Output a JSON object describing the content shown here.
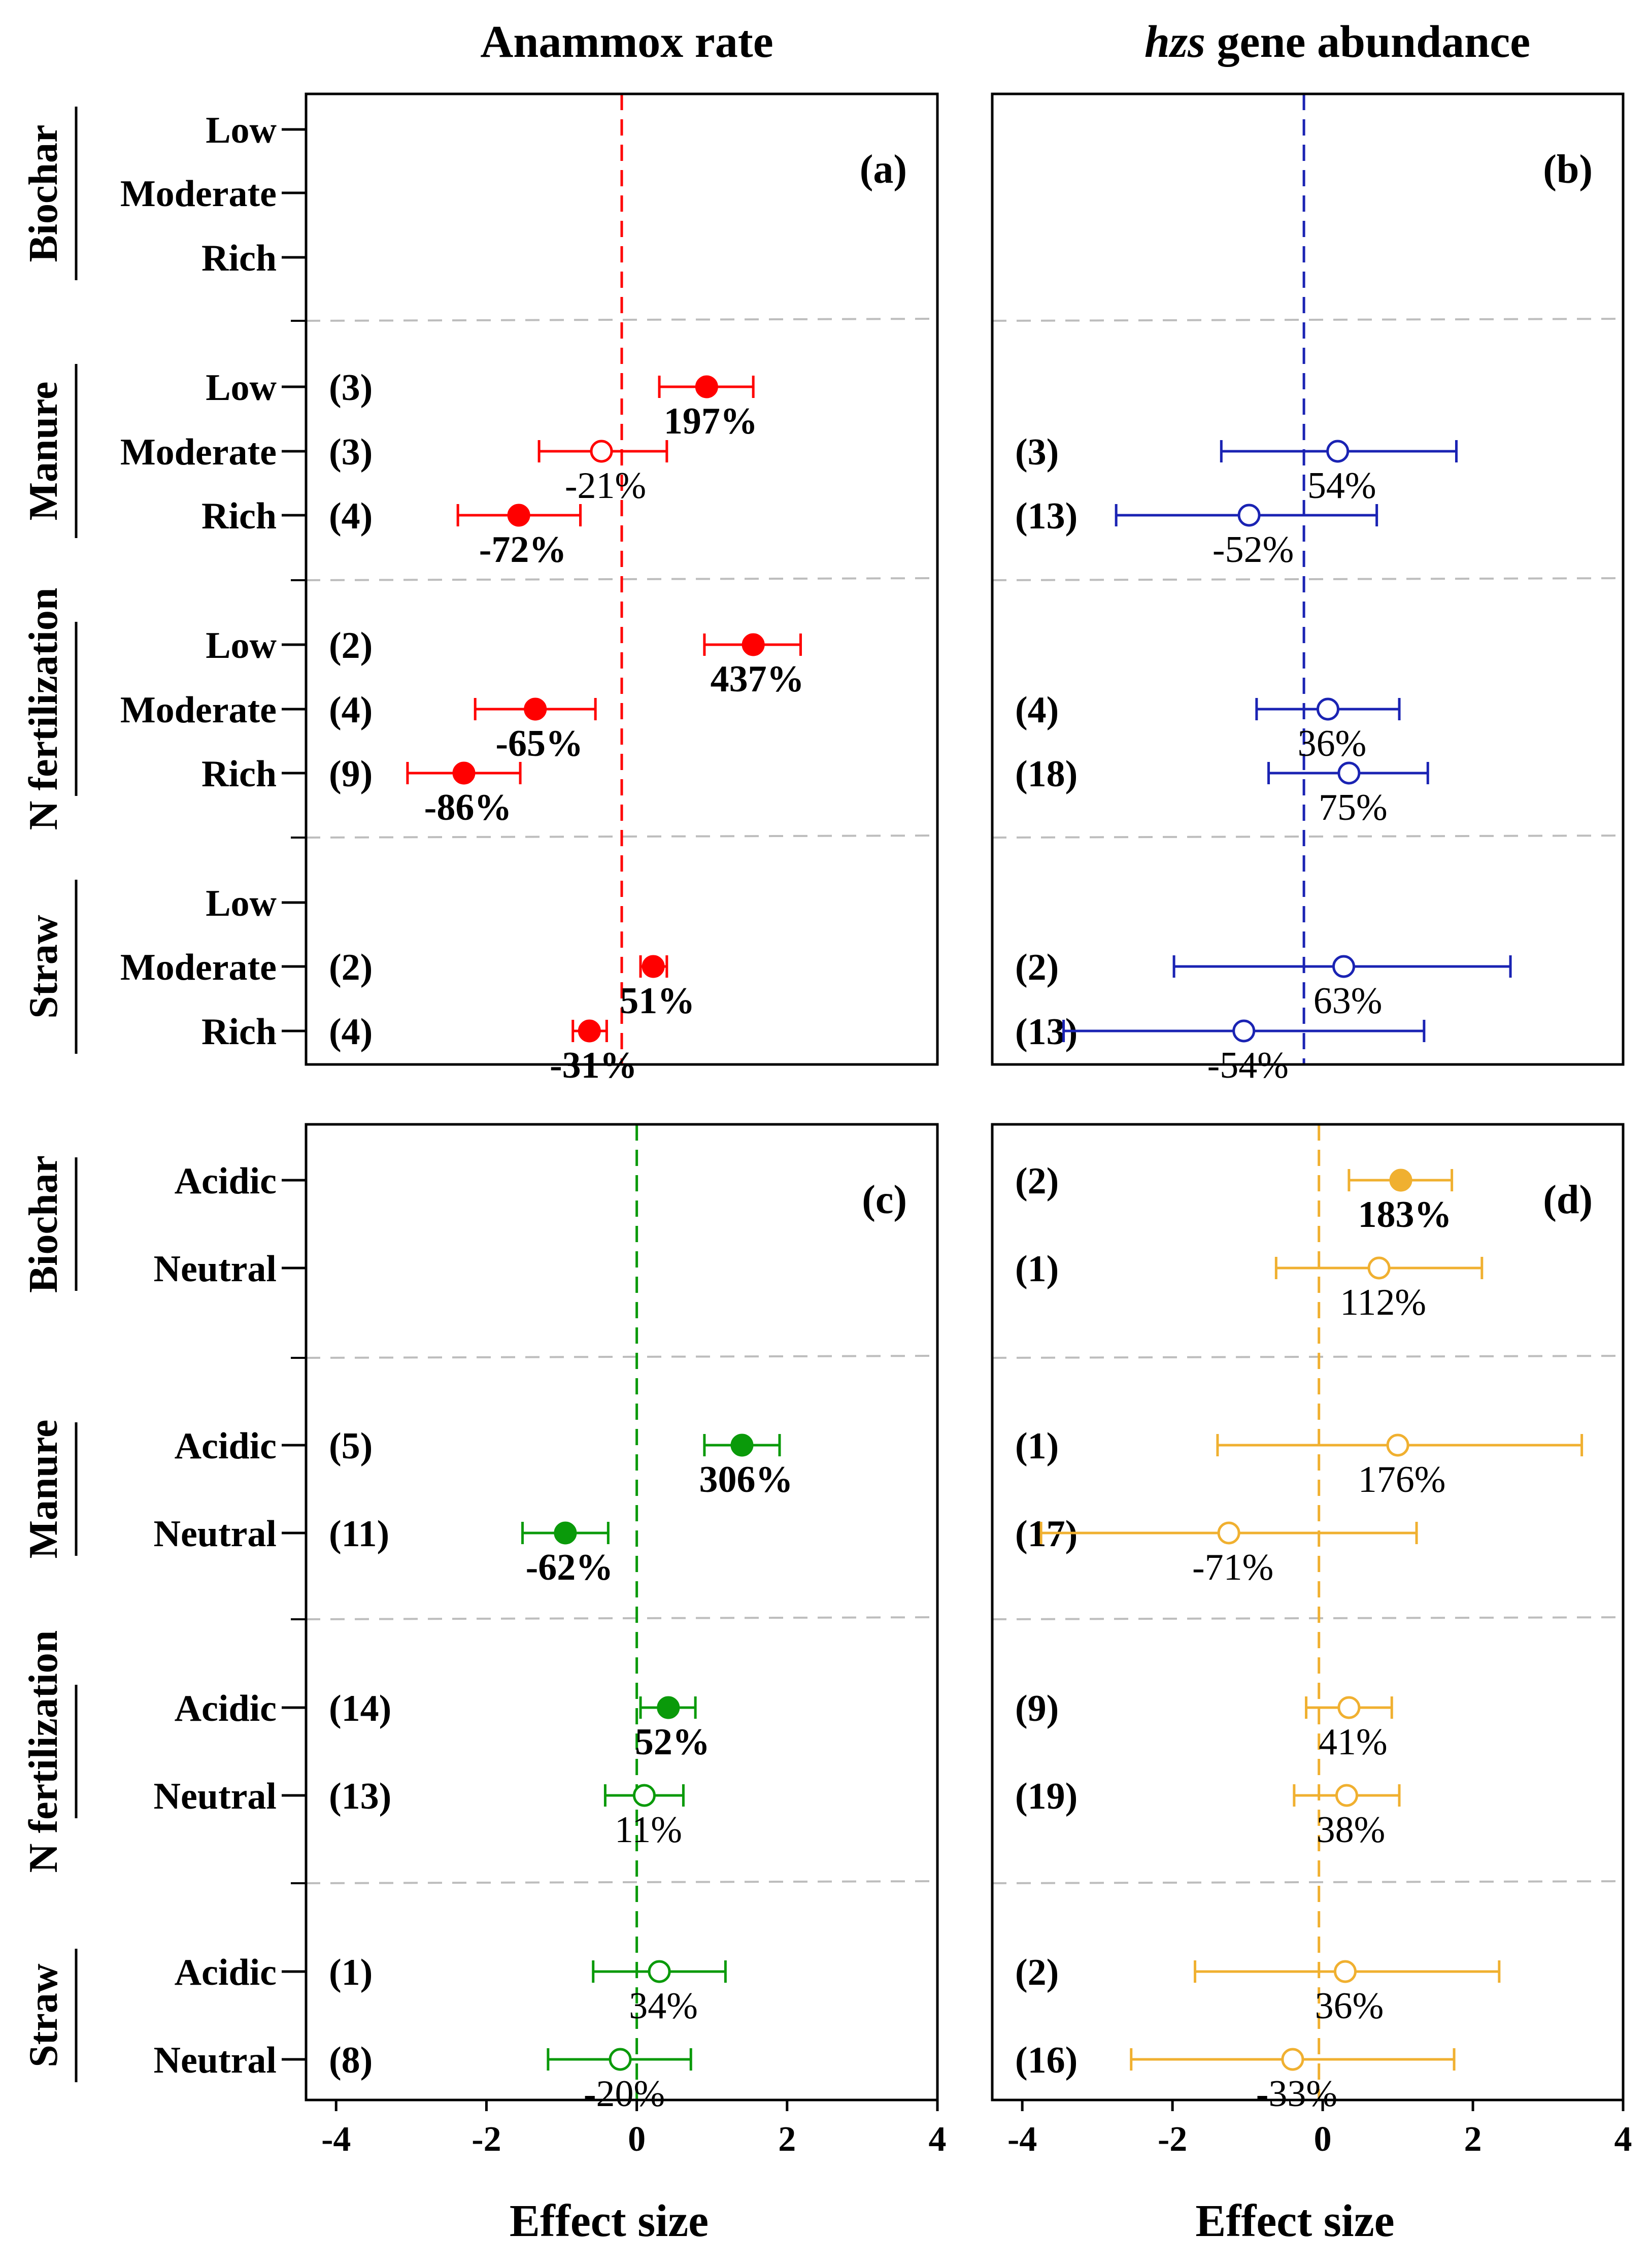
{
  "column_titles": {
    "left": "Anammox rate",
    "right_italic": "hzs",
    "right_rest": " gene abundance"
  },
  "x_axis_label": "Effect size",
  "chart_data": [
    {
      "panel": "(a)",
      "type": "forest",
      "title": "Anammox rate",
      "xlabel": "",
      "xlim": [
        -4.4,
        4
      ],
      "x_ticks": [],
      "color": "#ff0000",
      "ref_line": -0.2,
      "groups": [
        {
          "name": "Biochar",
          "rows": [
            {
              "label": "Low"
            },
            {
              "label": "Moderate"
            },
            {
              "label": "Rich"
            }
          ]
        },
        {
          "name": "Manure",
          "rows": [
            {
              "label": "Low",
              "n": "(3)",
              "mean": 0.93,
              "ci": [
                0.3,
                1.55
              ],
              "sig": true,
              "pct": "197%"
            },
            {
              "label": "Moderate",
              "n": "(3)",
              "mean": -0.47,
              "ci": [
                -1.3,
                0.4
              ],
              "sig": false,
              "pct": "-21%"
            },
            {
              "label": "Rich",
              "n": "(4)",
              "mean": -1.57,
              "ci": [
                -2.38,
                -0.75
              ],
              "sig": true,
              "pct": "-72%"
            }
          ]
        },
        {
          "name": "N fertilization",
          "rows": [
            {
              "label": "Low",
              "n": "(2)",
              "mean": 1.55,
              "ci": [
                0.9,
                2.18
              ],
              "sig": true,
              "pct": "437%"
            },
            {
              "label": "Moderate",
              "n": "(4)",
              "mean": -1.35,
              "ci": [
                -2.15,
                -0.55
              ],
              "sig": true,
              "pct": "-65%"
            },
            {
              "label": "Rich",
              "n": "(9)",
              "mean": -2.3,
              "ci": [
                -3.05,
                -1.55
              ],
              "sig": true,
              "pct": "-86%"
            }
          ]
        },
        {
          "name": "Straw",
          "rows": [
            {
              "label": "Low"
            },
            {
              "label": "Moderate",
              "n": "(2)",
              "mean": 0.22,
              "ci": [
                0.05,
                0.4
              ],
              "sig": true,
              "pct": "51%"
            },
            {
              "label": "Rich",
              "n": "(4)",
              "mean": -0.63,
              "ci": [
                -0.85,
                -0.4
              ],
              "sig": true,
              "pct": "-31%"
            }
          ]
        }
      ]
    },
    {
      "panel": "(b)",
      "type": "forest",
      "title": "hzs gene abundance",
      "xlabel": "",
      "xlim": [
        -4.4,
        4
      ],
      "x_ticks": [],
      "color": "#1a23b3",
      "ref_line": -0.25,
      "groups": [
        {
          "name": "Biochar",
          "rows": [
            {},
            {},
            {}
          ]
        },
        {
          "name": "Manure",
          "rows": [
            {},
            {
              "n": "(3)",
              "mean": 0.2,
              "ci": [
                -1.35,
                1.78
              ],
              "sig": false,
              "pct": "54%"
            },
            {
              "n": "(13)",
              "mean": -0.98,
              "ci": [
                -2.75,
                0.72
              ],
              "sig": false,
              "pct": "-52%"
            }
          ]
        },
        {
          "name": "N fertilization",
          "rows": [
            {},
            {
              "n": "(4)",
              "mean": 0.07,
              "ci": [
                -0.88,
                1.02
              ],
              "sig": false,
              "pct": "36%"
            },
            {
              "n": "(18)",
              "mean": 0.35,
              "ci": [
                -0.72,
                1.4
              ],
              "sig": false,
              "pct": "75%"
            }
          ]
        },
        {
          "name": "Straw",
          "rows": [
            {},
            {
              "n": "(2)",
              "mean": 0.28,
              "ci": [
                -1.98,
                2.5
              ],
              "sig": false,
              "pct": "63%"
            },
            {
              "n": "(13)",
              "mean": -1.05,
              "ci": [
                -3.45,
                1.35
              ],
              "sig": false,
              "pct": "-54%"
            }
          ]
        }
      ]
    },
    {
      "panel": "(c)",
      "type": "forest",
      "title": "",
      "xlabel": "Effect size",
      "xlim": [
        -4.4,
        4
      ],
      "x_ticks": [
        "-4",
        "-2",
        "0",
        "2",
        "4"
      ],
      "color": "#0a9a0a",
      "ref_line": 0,
      "groups": [
        {
          "name": "Biochar",
          "rows": [
            {
              "label": "Acidic"
            },
            {
              "label": "Neutral"
            }
          ]
        },
        {
          "name": "Manure",
          "rows": [
            {
              "label": "Acidic",
              "n": "(5)",
              "mean": 1.4,
              "ci": [
                0.9,
                1.9
              ],
              "sig": true,
              "pct": "306%"
            },
            {
              "label": "Neutral",
              "n": "(11)",
              "mean": -0.95,
              "ci": [
                -1.52,
                -0.38
              ],
              "sig": true,
              "pct": "-62%"
            }
          ]
        },
        {
          "name": "N fertilization",
          "rows": [
            {
              "label": "Acidic",
              "n": "(14)",
              "mean": 0.42,
              "ci": [
                0.05,
                0.78
              ],
              "sig": true,
              "pct": "52%"
            },
            {
              "label": "Neutral",
              "n": "(13)",
              "mean": 0.1,
              "ci": [
                -0.42,
                0.62
              ],
              "sig": false,
              "pct": "11%"
            }
          ]
        },
        {
          "name": "Straw",
          "rows": [
            {
              "label": "Acidic",
              "n": "(1)",
              "mean": 0.3,
              "ci": [
                -0.58,
                1.18
              ],
              "sig": false,
              "pct": "34%"
            },
            {
              "label": "Neutral",
              "n": "(8)",
              "mean": -0.22,
              "ci": [
                -1.18,
                0.72
              ],
              "sig": false,
              "pct": "-20%"
            }
          ]
        }
      ]
    },
    {
      "panel": "(d)",
      "type": "forest",
      "title": "",
      "xlabel": "Effect size",
      "xlim": [
        -4.4,
        4
      ],
      "x_ticks": [
        "-4",
        "-2",
        "0",
        "2",
        "4"
      ],
      "color": "#f0b030",
      "ref_line": -0.05,
      "groups": [
        {
          "name": "Biochar",
          "rows": [
            {
              "n": "(2)",
              "mean": 1.04,
              "ci": [
                0.35,
                1.72
              ],
              "sig": true,
              "pct": "183%"
            },
            {
              "n": "(1)",
              "mean": 0.75,
              "ci": [
                -0.62,
                2.12
              ],
              "sig": false,
              "pct": "112%"
            }
          ]
        },
        {
          "name": "Manure",
          "rows": [
            {
              "n": "(1)",
              "mean": 1.0,
              "ci": [
                -1.4,
                3.45
              ],
              "sig": false,
              "pct": "176%"
            },
            {
              "n": "(17)",
              "mean": -1.25,
              "ci": [
                -3.75,
                1.25
              ],
              "sig": false,
              "pct": "-71%"
            }
          ]
        },
        {
          "name": "N fertilization",
          "rows": [
            {
              "n": "(9)",
              "mean": 0.35,
              "ci": [
                -0.22,
                0.92
              ],
              "sig": false,
              "pct": "41%"
            },
            {
              "n": "(19)",
              "mean": 0.32,
              "ci": [
                -0.38,
                1.02
              ],
              "sig": false,
              "pct": "38%"
            }
          ]
        },
        {
          "name": "Straw",
          "rows": [
            {
              "n": "(2)",
              "mean": 0.3,
              "ci": [
                -1.7,
                2.35
              ],
              "sig": false,
              "pct": "36%"
            },
            {
              "n": "(16)",
              "mean": -0.4,
              "ci": [
                -2.55,
                1.75
              ],
              "sig": false,
              "pct": "-33%"
            }
          ]
        }
      ]
    }
  ]
}
